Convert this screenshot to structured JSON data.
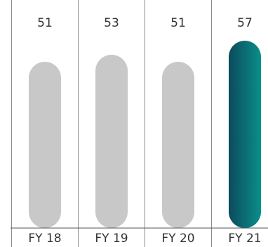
{
  "colors": {
    "bar_default": "#c8c8c8",
    "bar_highlight_start": "#0c4a5e",
    "bar_highlight_end": "#0a8f8a",
    "divider": "#8c8c8c",
    "text": "#333333"
  },
  "chart_data": {
    "type": "bar",
    "title": "",
    "xlabel": "",
    "ylabel": "",
    "categories": [
      "FY 18",
      "FY 19",
      "FY 20",
      "FY 21"
    ],
    "values": [
      51,
      53,
      51,
      57
    ],
    "highlight_index": 3,
    "grid": false,
    "legend": "none"
  }
}
